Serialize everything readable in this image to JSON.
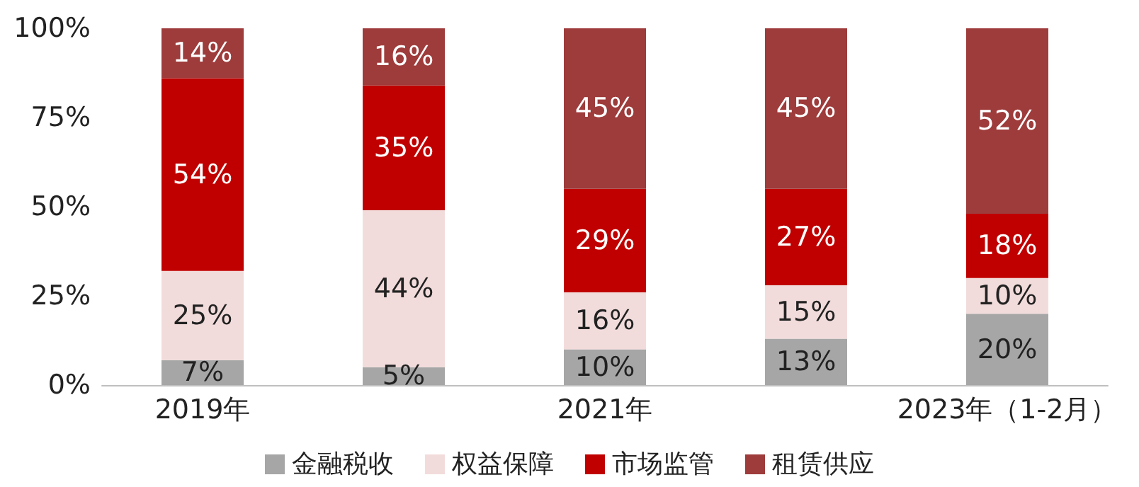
{
  "chart_data": {
    "type": "bar",
    "stacked": true,
    "categories": [
      "2019年",
      null,
      "2021年",
      null,
      "2023年（1-2月）"
    ],
    "series": [
      {
        "name": "金融税收",
        "color": "#a6a6a6",
        "values": [
          7,
          5,
          10,
          13,
          20
        ],
        "value_labels": [
          "7%",
          "5%",
          "10%",
          "13%",
          "20%"
        ]
      },
      {
        "name": "权益保障",
        "color": "#f2dcdb",
        "values": [
          25,
          44,
          16,
          15,
          10
        ],
        "value_labels": [
          "25%",
          "44%",
          "16%",
          "15%",
          "10%"
        ]
      },
      {
        "name": "市场监管",
        "color": "#c00000",
        "values": [
          54,
          35,
          29,
          27,
          18
        ],
        "value_labels": [
          "54%",
          "35%",
          "29%",
          "27%",
          "18%"
        ]
      },
      {
        "name": "租赁供应",
        "color": "#9e3b3b",
        "values": [
          14,
          16,
          45,
          45,
          52
        ],
        "value_labels": [
          "14%",
          "16%",
          "45%",
          "45%",
          "52%"
        ]
      }
    ],
    "ylim": [
      0,
      100
    ],
    "yticks": [
      {
        "value": 0,
        "label": "0%"
      },
      {
        "value": 25,
        "label": "25%"
      },
      {
        "value": 50,
        "label": "50%"
      },
      {
        "value": 75,
        "label": "75%"
      },
      {
        "value": 100,
        "label": "100%"
      }
    ],
    "grid": false,
    "legend": "bottom"
  }
}
